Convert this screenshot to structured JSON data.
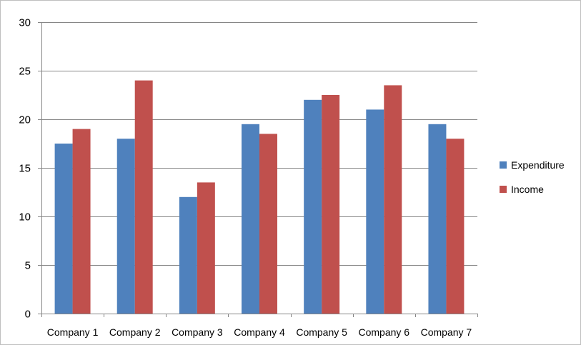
{
  "chart_data": {
    "type": "bar",
    "title": "",
    "xlabel": "",
    "ylabel": "",
    "categories": [
      "Company 1",
      "Company 2",
      "Company 3",
      "Company 4",
      "Company 5",
      "Company 6",
      "Company 7"
    ],
    "series": [
      {
        "name": "Expenditure",
        "color": "#4F81BD",
        "values": [
          17.5,
          18,
          12,
          19.5,
          22,
          21,
          19.5
        ]
      },
      {
        "name": "Income",
        "color": "#C0504D",
        "values": [
          19,
          24,
          13.5,
          18.5,
          22.5,
          23.5,
          18
        ]
      }
    ],
    "ylim": [
      0,
      30
    ],
    "yticks": [
      0,
      5,
      10,
      15,
      20,
      25,
      30
    ],
    "grid": true,
    "legend_position": "right"
  }
}
